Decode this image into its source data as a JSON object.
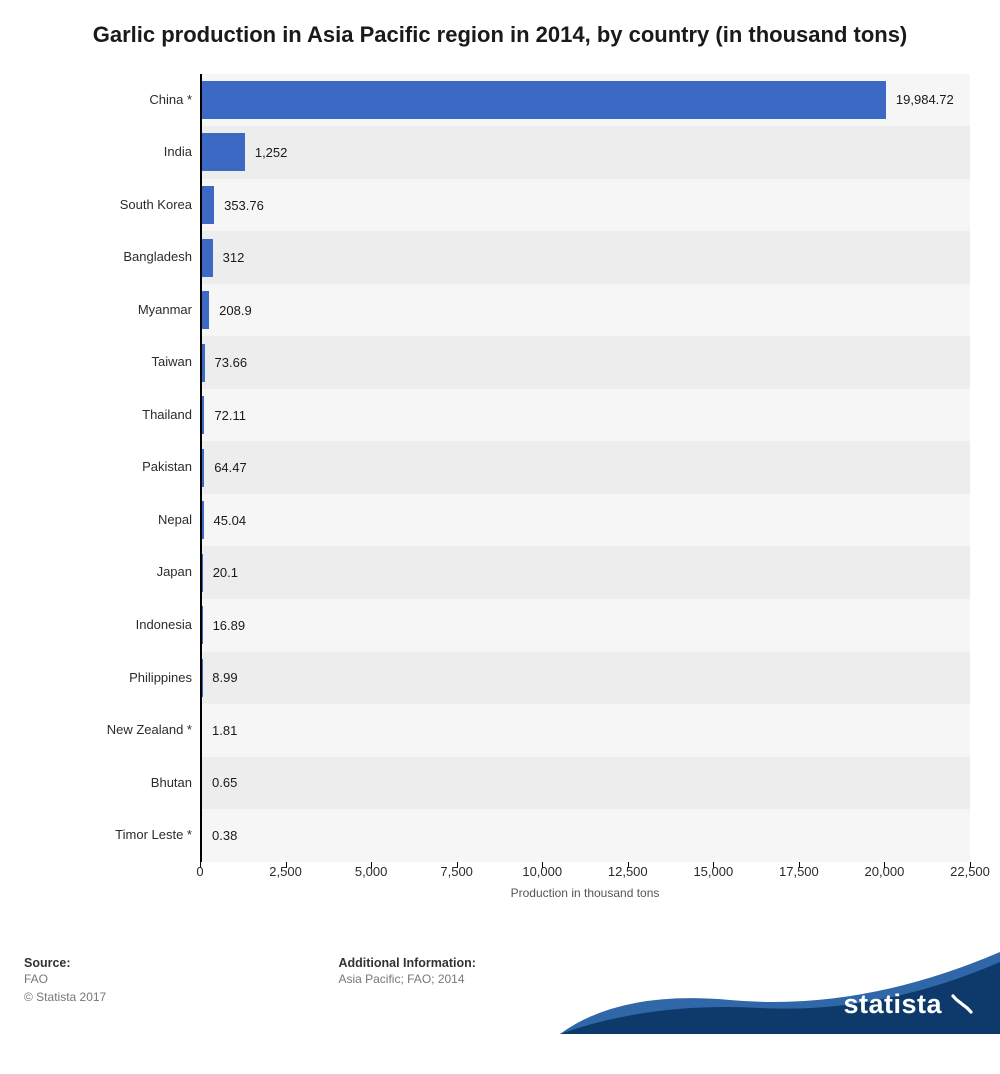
{
  "title": "Garlic production in Asia Pacific region in 2014, by country (in thousand tons)",
  "chart": {
    "type": "bar-horizontal",
    "categories": [
      "China *",
      "India",
      "South Korea",
      "Bangladesh",
      "Myanmar",
      "Taiwan",
      "Thailand",
      "Pakistan",
      "Nepal",
      "Japan",
      "Indonesia",
      "Philippines",
      "New Zealand *",
      "Bhutan",
      "Timor Leste *"
    ],
    "values": [
      19984.72,
      1252,
      353.76,
      312,
      208.9,
      73.66,
      72.11,
      64.47,
      45.04,
      20.1,
      16.89,
      8.99,
      1.81,
      0.65,
      0.38
    ],
    "value_labels": [
      "19,984.72",
      "1,252",
      "353.76",
      "312",
      "208.9",
      "73.66",
      "72.11",
      "64.47",
      "45.04",
      "20.1",
      "16.89",
      "8.99",
      "1.81",
      "0.65",
      "0.38"
    ],
    "bar_color": "#3c69c4",
    "stripe_colors": [
      "#f6f6f6",
      "#ededed"
    ],
    "xlim": [
      0,
      22500
    ],
    "xticks": [
      0,
      2500,
      5000,
      7500,
      10000,
      12500,
      15000,
      17500,
      20000,
      22500
    ],
    "xtick_labels": [
      "0",
      "2,500",
      "5,000",
      "7,500",
      "10,000",
      "12,500",
      "15,000",
      "17,500",
      "20,000",
      "22,500"
    ],
    "x_axis_title": "Production in thousand tons",
    "label_fontsize": 13,
    "title_fontsize": 22,
    "axis_color": "#000000",
    "text_color": "#1a1a1a"
  },
  "footer": {
    "source_head": "Source:",
    "source": "FAO",
    "copyright": "© Statista 2017",
    "addl_head": "Additional Information:",
    "addl": "Asia Pacific; FAO; 2014",
    "logo_text": "statista",
    "wave_dark": "#0d3a6b",
    "wave_light": "#2f67a8"
  }
}
